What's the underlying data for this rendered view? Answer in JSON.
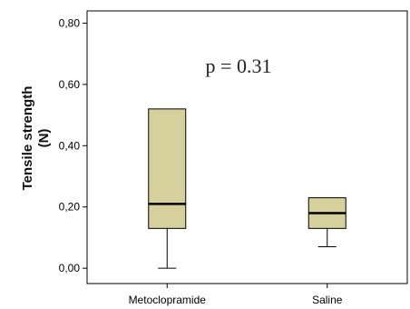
{
  "chart_data": {
    "type": "boxplot",
    "ylabel": "Tensile strength\n(N)",
    "xlabel": "",
    "ylim": [
      -0.05,
      0.84
    ],
    "y_ticks": [
      0.0,
      0.2,
      0.4,
      0.6,
      0.8
    ],
    "y_tick_labels": [
      "0,00",
      "0,20",
      "0,40",
      "0,60",
      "0,80"
    ],
    "annotation": "p = 0.31",
    "box_fill": "#d6d19c",
    "categories": [
      "Metoclopramide",
      "Saline"
    ],
    "boxes": [
      {
        "name": "Metoclopramide",
        "min": 0.0,
        "q1": 0.13,
        "median": 0.21,
        "q3": 0.52,
        "max": 0.52
      },
      {
        "name": "Saline",
        "min": 0.07,
        "q1": 0.13,
        "median": 0.18,
        "q3": 0.23,
        "max": 0.23
      }
    ]
  }
}
